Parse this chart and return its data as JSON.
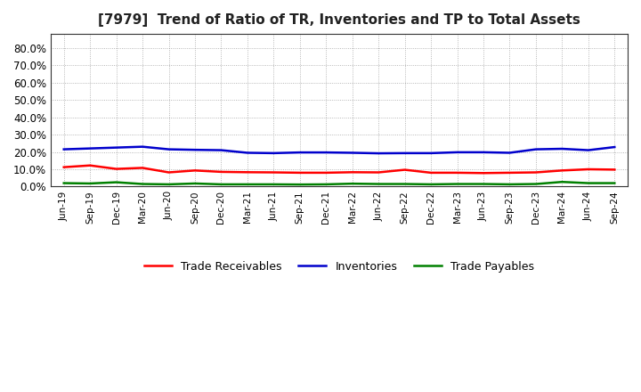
{
  "title": "[7979]  Trend of Ratio of TR, Inventories and TP to Total Assets",
  "x_labels": [
    "Jun-19",
    "Sep-19",
    "Dec-19",
    "Mar-20",
    "Jun-20",
    "Sep-20",
    "Dec-20",
    "Mar-21",
    "Jun-21",
    "Sep-21",
    "Dec-21",
    "Mar-22",
    "Jun-22",
    "Sep-22",
    "Dec-22",
    "Mar-23",
    "Jun-23",
    "Sep-23",
    "Dec-23",
    "Mar-24",
    "Jun-24",
    "Sep-24"
  ],
  "trade_receivables": [
    0.112,
    0.122,
    0.102,
    0.108,
    0.082,
    0.093,
    0.085,
    0.083,
    0.082,
    0.08,
    0.08,
    0.083,
    0.082,
    0.097,
    0.08,
    0.08,
    0.078,
    0.08,
    0.082,
    0.093,
    0.1,
    0.098
  ],
  "inventories": [
    0.215,
    0.22,
    0.225,
    0.23,
    0.215,
    0.212,
    0.21,
    0.195,
    0.193,
    0.197,
    0.197,
    0.195,
    0.192,
    0.193,
    0.193,
    0.198,
    0.198,
    0.195,
    0.215,
    0.218,
    0.21,
    0.228
  ],
  "trade_payables": [
    0.02,
    0.018,
    0.025,
    0.015,
    0.013,
    0.018,
    0.013,
    0.013,
    0.013,
    0.012,
    0.013,
    0.017,
    0.015,
    0.015,
    0.013,
    0.015,
    0.015,
    0.013,
    0.015,
    0.027,
    0.02,
    0.02
  ],
  "tr_color": "#ff0000",
  "inv_color": "#0000cc",
  "tp_color": "#008000",
  "ylim": [
    0.0,
    0.88
  ],
  "yticks": [
    0.0,
    0.1,
    0.2,
    0.3,
    0.4,
    0.5,
    0.6,
    0.7,
    0.8
  ],
  "ytick_labels": [
    "0.0%",
    "10.0%",
    "20.0%",
    "30.0%",
    "40.0%",
    "50.0%",
    "60.0%",
    "70.0%",
    "80.0%"
  ],
  "background_color": "#ffffff",
  "grid_color": "#999999",
  "legend_labels": [
    "Trade Receivables",
    "Inventories",
    "Trade Payables"
  ],
  "line_width": 1.8,
  "title_fontsize": 11,
  "tick_fontsize": 7.5,
  "ytick_fontsize": 8.5,
  "legend_fontsize": 9
}
